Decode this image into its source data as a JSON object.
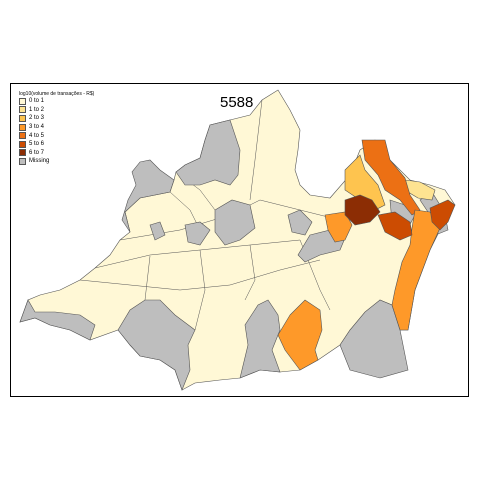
{
  "map": {
    "title": "5588",
    "legend_title": "log10(volume de transações - R$)",
    "legend": [
      {
        "label": "0 to 1",
        "color": "#FFF8D6"
      },
      {
        "label": "1 to 2",
        "color": "#FEE391"
      },
      {
        "label": "2 to 3",
        "color": "#FEC44F"
      },
      {
        "label": "3 to 4",
        "color": "#FE9929"
      },
      {
        "label": "4 to 5",
        "color": "#EC7014"
      },
      {
        "label": "5 to 6",
        "color": "#CC4C02"
      },
      {
        "label": "6 to 7",
        "color": "#8C2D04"
      },
      {
        "label": "Missing",
        "color": "#BEBEBE"
      }
    ],
    "border_color": "#555555"
  }
}
